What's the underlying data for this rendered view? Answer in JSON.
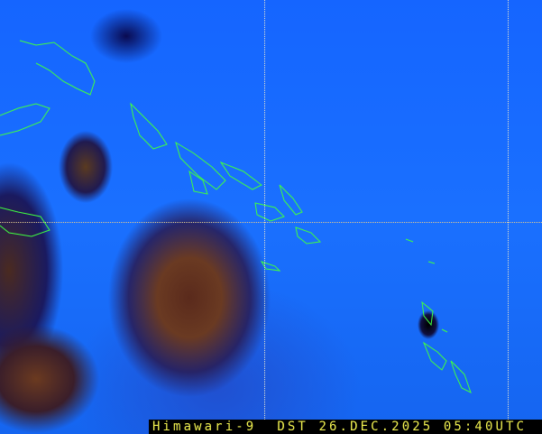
{
  "caption": {
    "satellite": "Himawari-9",
    "product": "DST",
    "date": "26.DEC.2025",
    "time": "05:40UTC"
  },
  "colors": {
    "caption_text": "#f0f050",
    "coastline": "#40ff40",
    "sky": "#1a70ff"
  }
}
